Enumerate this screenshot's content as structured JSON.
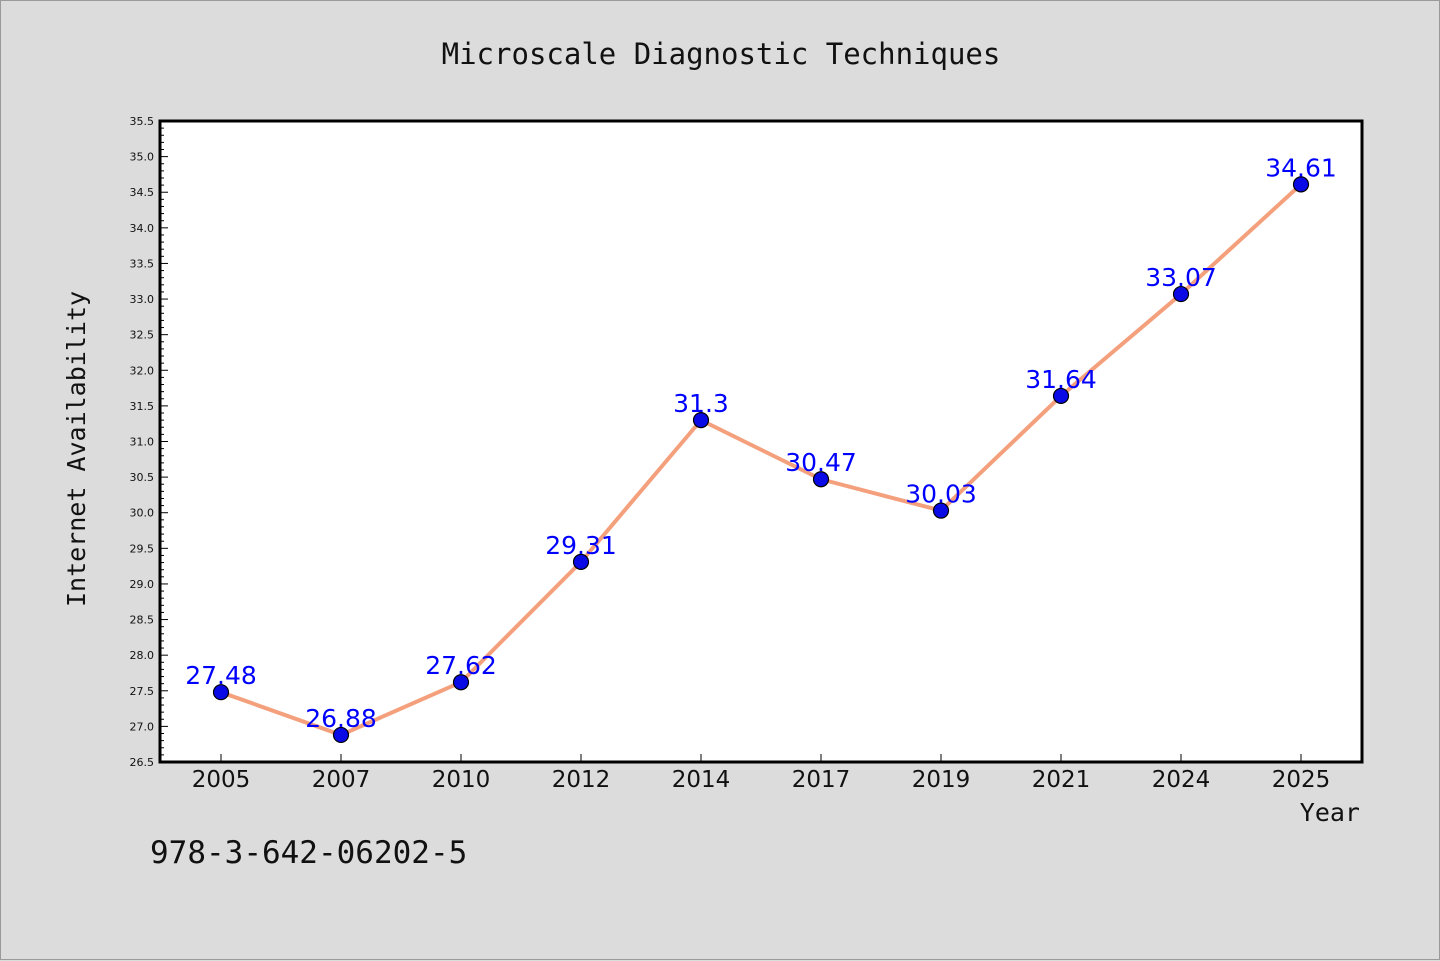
{
  "chart_data": {
    "type": "line",
    "title": "Microscale Diagnostic Techniques",
    "xlabel": "Year",
    "ylabel": "Internet Availability",
    "categories": [
      "2005",
      "2007",
      "2010",
      "2012",
      "2014",
      "2017",
      "2019",
      "2021",
      "2024",
      "2025"
    ],
    "series": [
      {
        "values": [
          27.48,
          26.88,
          27.62,
          29.31,
          31.3,
          30.47,
          30.03,
          31.64,
          33.07,
          34.61
        ],
        "data_labels": [
          "27.48",
          "26.88",
          "27.62",
          "29.31",
          "31.3",
          "30.47",
          "30.03",
          "31.64",
          "33.07",
          "34.61"
        ],
        "line_color": "#f4a07c",
        "marker_color": "#0a0ae6",
        "label_color": "#0000ff"
      }
    ],
    "ylim": [
      26.5,
      35.5
    ],
    "yticks": [
      "26.5",
      "27.0",
      "27.5",
      "28.0",
      "28.5",
      "29.0",
      "29.5",
      "30.0",
      "30.5",
      "31.0",
      "31.5",
      "32.0",
      "32.5",
      "33.0",
      "33.5",
      "34.0",
      "34.5",
      "35.0",
      "35.5"
    ],
    "grid": false,
    "legend": "none"
  },
  "footer": {
    "isbn": "978-3-642-06202-5"
  },
  "colors": {
    "background": "#dcdcdc",
    "plot_background": "#ffffff",
    "axis": "#000000"
  }
}
